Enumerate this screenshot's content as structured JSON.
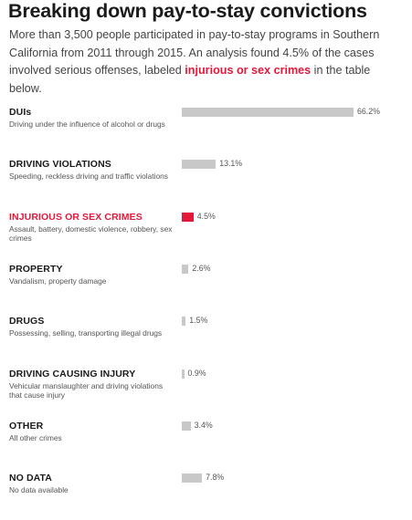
{
  "title": "Breaking down pay-to-stay convictions",
  "subtitle_before": "More than 3,500 people participated in pay-to-stay programs in Southern California from 2011 through 2015. An analysis found 4.5% of the cases involved serious offenses, labeled ",
  "subtitle_highlight": "injurious or sex crimes",
  "subtitle_after": " in the table below.",
  "colors": {
    "bar": "#c8c8c8",
    "highlight": "#e3173a"
  },
  "chart_data": {
    "type": "bar",
    "orientation": "horizontal",
    "unit": "%",
    "xlim": [
      0,
      66.2
    ],
    "rows": [
      {
        "label": "DUIs",
        "desc": "Driving under the influence of alcohol or drugs",
        "value": 66.2,
        "value_label": "66.2%",
        "highlight": false
      },
      {
        "label": "DRIVING VIOLATIONS",
        "desc": "Speeding, reckless driving and traffic violations",
        "value": 13.1,
        "value_label": "13.1%",
        "highlight": false
      },
      {
        "label": "INJURIOUS OR SEX CRIMES",
        "desc": "Assault, battery, domestic violence, robbery, sex crimes",
        "value": 4.5,
        "value_label": "4.5%",
        "highlight": true
      },
      {
        "label": "PROPERTY",
        "desc": "Vandalism, property damage",
        "value": 2.6,
        "value_label": "2.6%",
        "highlight": false
      },
      {
        "label": "DRUGS",
        "desc": "Possessing, selling, transporting illegal drugs",
        "value": 1.5,
        "value_label": "1.5%",
        "highlight": false
      },
      {
        "label": "DRIVING CAUSING INJURY",
        "desc": "Vehicular manslaughter and driving violations that cause injury",
        "value": 0.9,
        "value_label": "0.9%",
        "highlight": false
      },
      {
        "label": "OTHER",
        "desc": "All other crimes",
        "value": 3.4,
        "value_label": "3.4%",
        "highlight": false
      },
      {
        "label": "NO DATA",
        "desc": "No data available",
        "value": 7.8,
        "value_label": "7.8%",
        "highlight": false
      }
    ]
  }
}
